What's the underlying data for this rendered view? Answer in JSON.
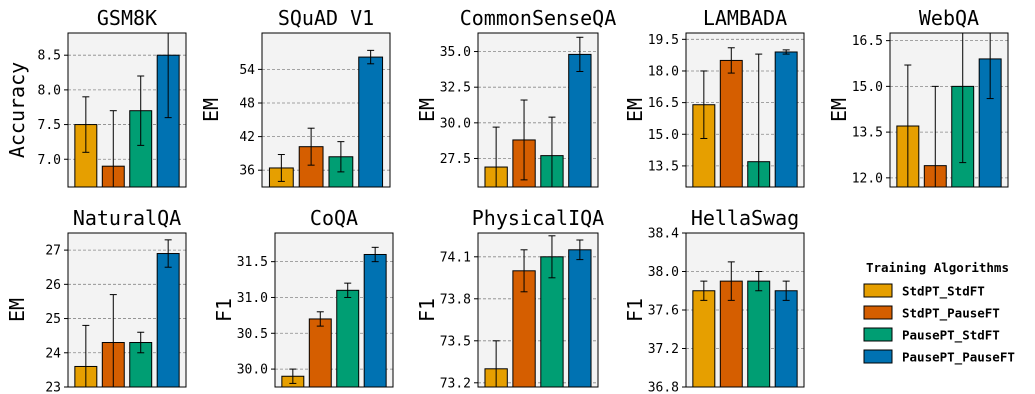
{
  "colors": {
    "StdPT_StdFT": "#E69F00",
    "StdPT_PauseFT": "#D55E00",
    "PausePT_StdFT": "#009E73",
    "PausePT_PauseFT": "#0072B2",
    "panel_bg": "#F3F3F3",
    "grid": "#888888"
  },
  "legend": {
    "title": "Training Algorithms",
    "entries": [
      "StdPT_StdFT",
      "StdPT_PauseFT",
      "PausePT_StdFT",
      "PausePT_PauseFT"
    ]
  },
  "chart_data": [
    {
      "type": "bar",
      "title": "GSM8K",
      "ylabel": "Accuracy",
      "ylim": [
        6.6,
        8.82
      ],
      "yticks": [
        7.0,
        7.5,
        8.0,
        8.5
      ],
      "tick_labels": [
        "7.0",
        "7.5",
        "8.0",
        "8.5"
      ],
      "categories": [
        "StdPT_StdFT",
        "StdPT_PauseFT",
        "PausePT_StdFT",
        "PausePT_PauseFT"
      ],
      "values": [
        7.5,
        6.9,
        7.7,
        8.5
      ],
      "errors": [
        0.4,
        0.8,
        0.5,
        0.9
      ],
      "grid": true
    },
    {
      "type": "bar",
      "title": "SQuAD V1",
      "ylabel": "EM",
      "ylim": [
        33.0,
        60.5
      ],
      "yticks": [
        36,
        42,
        48,
        54
      ],
      "tick_labels": [
        "36",
        "42",
        "48",
        "54"
      ],
      "categories": [
        "StdPT_StdFT",
        "StdPT_PauseFT",
        "PausePT_StdFT",
        "PausePT_PauseFT"
      ],
      "values": [
        36.4,
        40.2,
        38.4,
        56.2
      ],
      "errors": [
        2.4,
        3.3,
        2.7,
        1.2
      ],
      "grid": true
    },
    {
      "type": "bar",
      "title": "CommonSenseQA",
      "ylabel": "EM",
      "ylim": [
        25.5,
        36.3
      ],
      "yticks": [
        27.5,
        30.0,
        32.5,
        35.0
      ],
      "tick_labels": [
        "27.5",
        "30.0",
        "32.5",
        "35.0"
      ],
      "categories": [
        "StdPT_StdFT",
        "StdPT_PauseFT",
        "PausePT_StdFT",
        "PausePT_PauseFT"
      ],
      "values": [
        26.9,
        28.8,
        27.7,
        34.8
      ],
      "errors": [
        2.8,
        2.8,
        2.7,
        1.2
      ],
      "grid": true
    },
    {
      "type": "bar",
      "title": "LAMBADA",
      "ylabel": "EM",
      "ylim": [
        12.5,
        19.8
      ],
      "yticks": [
        13.5,
        15.0,
        16.5,
        18.0,
        19.5
      ],
      "tick_labels": [
        "13.5",
        "15.0",
        "16.5",
        "18.0",
        "19.5"
      ],
      "categories": [
        "StdPT_StdFT",
        "StdPT_PauseFT",
        "PausePT_StdFT",
        "PausePT_PauseFT"
      ],
      "values": [
        16.4,
        18.5,
        13.7,
        18.9
      ],
      "errors": [
        1.6,
        0.6,
        5.1,
        0.1
      ],
      "grid": true
    },
    {
      "type": "bar",
      "title": "WebQA",
      "ylabel": "EM",
      "ylim": [
        11.7,
        16.75
      ],
      "yticks": [
        12.0,
        13.5,
        15.0,
        16.5
      ],
      "tick_labels": [
        "12.0",
        "13.5",
        "15.0",
        "16.5"
      ],
      "categories": [
        "StdPT_StdFT",
        "StdPT_PauseFT",
        "PausePT_StdFT",
        "PausePT_PauseFT"
      ],
      "values": [
        13.7,
        12.4,
        15.0,
        15.9
      ],
      "errors": [
        2.0,
        2.6,
        2.5,
        1.3
      ],
      "grid": true
    },
    {
      "type": "bar",
      "title": "NaturalQA",
      "ylabel": "EM",
      "ylim": [
        23.0,
        27.5
      ],
      "yticks": [
        23,
        24,
        25,
        26,
        27
      ],
      "tick_labels": [
        "23",
        "24",
        "25",
        "26",
        "27"
      ],
      "categories": [
        "StdPT_StdFT",
        "StdPT_PauseFT",
        "PausePT_StdFT",
        "PausePT_PauseFT"
      ],
      "values": [
        23.6,
        24.3,
        24.3,
        26.9
      ],
      "errors": [
        1.2,
        1.4,
        0.3,
        0.4
      ],
      "grid": true
    },
    {
      "type": "bar",
      "title": "CoQA",
      "ylabel": "F1",
      "ylim": [
        29.75,
        31.9
      ],
      "yticks": [
        30.0,
        30.5,
        31.0,
        31.5
      ],
      "tick_labels": [
        "30.0",
        "30.5",
        "31.0",
        "31.5"
      ],
      "categories": [
        "StdPT_StdFT",
        "StdPT_PauseFT",
        "PausePT_StdFT",
        "PausePT_PauseFT"
      ],
      "values": [
        29.9,
        30.7,
        31.1,
        31.6
      ],
      "errors": [
        0.1,
        0.1,
        0.1,
        0.1
      ],
      "grid": true
    },
    {
      "type": "bar",
      "title": "PhysicalIQA",
      "ylabel": "F1",
      "ylim": [
        73.17,
        74.27
      ],
      "yticks": [
        73.2,
        73.5,
        73.8,
        74.1
      ],
      "tick_labels": [
        "73.2",
        "73.5",
        "73.8",
        "74.1"
      ],
      "categories": [
        "StdPT_StdFT",
        "StdPT_PauseFT",
        "PausePT_StdFT",
        "PausePT_PauseFT"
      ],
      "values": [
        73.3,
        74.0,
        74.1,
        74.15
      ],
      "errors": [
        0.2,
        0.15,
        0.15,
        0.07
      ],
      "grid": true
    },
    {
      "type": "bar",
      "title": "HellaSwag",
      "ylabel": "F1",
      "ylim": [
        36.8,
        38.4
      ],
      "yticks": [
        36.8,
        37.2,
        37.6,
        38.0,
        38.4
      ],
      "tick_labels": [
        "36.8",
        "37.2",
        "37.6",
        "38.0",
        "38.4"
      ],
      "categories": [
        "StdPT_StdFT",
        "StdPT_PauseFT",
        "PausePT_StdFT",
        "PausePT_PauseFT"
      ],
      "values": [
        37.8,
        37.9,
        37.9,
        37.8
      ],
      "errors": [
        0.1,
        0.2,
        0.1,
        0.1
      ],
      "grid": true
    }
  ]
}
